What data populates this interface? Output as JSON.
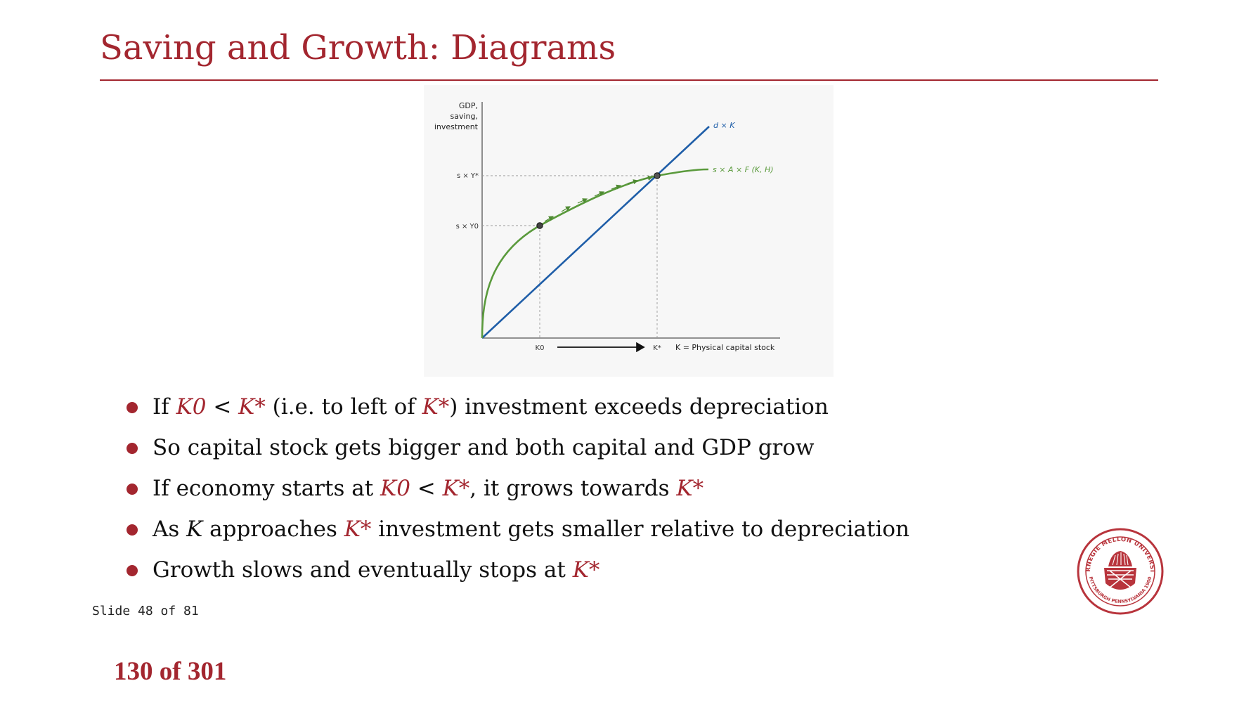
{
  "slide": {
    "title": "Saving and Growth: Diagrams",
    "slide_counter": "Slide 48 of 81",
    "page_counter": "130 of 301"
  },
  "diagram": {
    "y_axis_label": [
      "GDP,",
      "saving,",
      "investment"
    ],
    "x_axis_label": "K = Physical capital stock",
    "line_label": "d × K",
    "curve_label": "s × A × F (K, H)",
    "y_tick_star": "s × Y*",
    "y_tick_zero": "s × Y0",
    "x_tick_zero": "K0",
    "x_tick_star": "K*",
    "colors": {
      "line": "#1f5ea8",
      "curve": "#5a9a3c",
      "accent": "#a3262f"
    }
  },
  "bullets": [
    {
      "prefix": "If ",
      "m1": "K0",
      "mid1": " < ",
      "m2": "K*",
      "mid2": " (i.e. to left of ",
      "m3": "K*",
      "suffix": ") investment exceeds depreciation"
    },
    {
      "text": "So capital stock gets bigger and both capital and GDP grow"
    },
    {
      "prefix": "If economy starts at ",
      "m1": "K0",
      "mid1": " < ",
      "m2": "K*",
      "mid2": ", it grows towards ",
      "m3": "K*"
    },
    {
      "prefix": "As ",
      "k": "K",
      "mid1": " approaches ",
      "m1": "K*",
      "suffix": " investment gets smaller relative to depreciation"
    },
    {
      "prefix": "Growth slows and eventually stops at ",
      "m1": "K*"
    }
  ],
  "logo": {
    "text_top": "CARNEGIE MELLON UNIVERSITY",
    "text_bottom": "PITTSBURGH PENNSYLVANIA 1900"
  }
}
